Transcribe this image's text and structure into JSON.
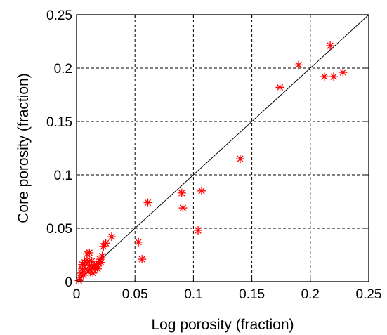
{
  "chart_data": {
    "type": "scatter",
    "xlabel": "Log porosity (fraction)",
    "ylabel": "Core porosity (fraction)",
    "xlim": [
      0,
      0.25
    ],
    "ylim": [
      0,
      0.25
    ],
    "x_ticks": [
      0,
      0.05,
      0.1,
      0.15,
      0.2,
      0.25
    ],
    "y_ticks": [
      0,
      0.05,
      0.1,
      0.15,
      0.2,
      0.25
    ],
    "x_tick_labels": [
      "0",
      "0.05",
      "0.1",
      "0.15",
      "0.2",
      "0.25"
    ],
    "y_tick_labels": [
      "0",
      "0.05",
      "0.1",
      "0.15",
      "0.2",
      "0.25"
    ],
    "grid": true,
    "grid_style": "dashed",
    "marker": "asterisk",
    "marker_color": "#ff0000",
    "reference_line": {
      "type": "y=x",
      "color": "#000000",
      "from": [
        0,
        0
      ],
      "to": [
        0.25,
        0.25
      ]
    },
    "points": [
      [
        0.002,
        0.001
      ],
      [
        0.003,
        0.004
      ],
      [
        0.004,
        0.008
      ],
      [
        0.005,
        0.012
      ],
      [
        0.005,
        0.016
      ],
      [
        0.006,
        0.006
      ],
      [
        0.007,
        0.018
      ],
      [
        0.008,
        0.012
      ],
      [
        0.009,
        0.02
      ],
      [
        0.009,
        0.026
      ],
      [
        0.01,
        0.009
      ],
      [
        0.011,
        0.027
      ],
      [
        0.011,
        0.015
      ],
      [
        0.012,
        0.011
      ],
      [
        0.013,
        0.019
      ],
      [
        0.014,
        0.008
      ],
      [
        0.015,
        0.014
      ],
      [
        0.016,
        0.012
      ],
      [
        0.017,
        0.016
      ],
      [
        0.018,
        0.012
      ],
      [
        0.019,
        0.017
      ],
      [
        0.02,
        0.021
      ],
      [
        0.021,
        0.018
      ],
      [
        0.022,
        0.024
      ],
      [
        0.023,
        0.033
      ],
      [
        0.025,
        0.036
      ],
      [
        0.03,
        0.042
      ],
      [
        0.053,
        0.037
      ],
      [
        0.056,
        0.021
      ],
      [
        0.061,
        0.074
      ],
      [
        0.09,
        0.083
      ],
      [
        0.091,
        0.069
      ],
      [
        0.104,
        0.048
      ],
      [
        0.107,
        0.085
      ],
      [
        0.14,
        0.115
      ],
      [
        0.174,
        0.182
      ],
      [
        0.19,
        0.203
      ],
      [
        0.212,
        0.192
      ],
      [
        0.217,
        0.221
      ],
      [
        0.22,
        0.192
      ],
      [
        0.228,
        0.196
      ]
    ]
  }
}
